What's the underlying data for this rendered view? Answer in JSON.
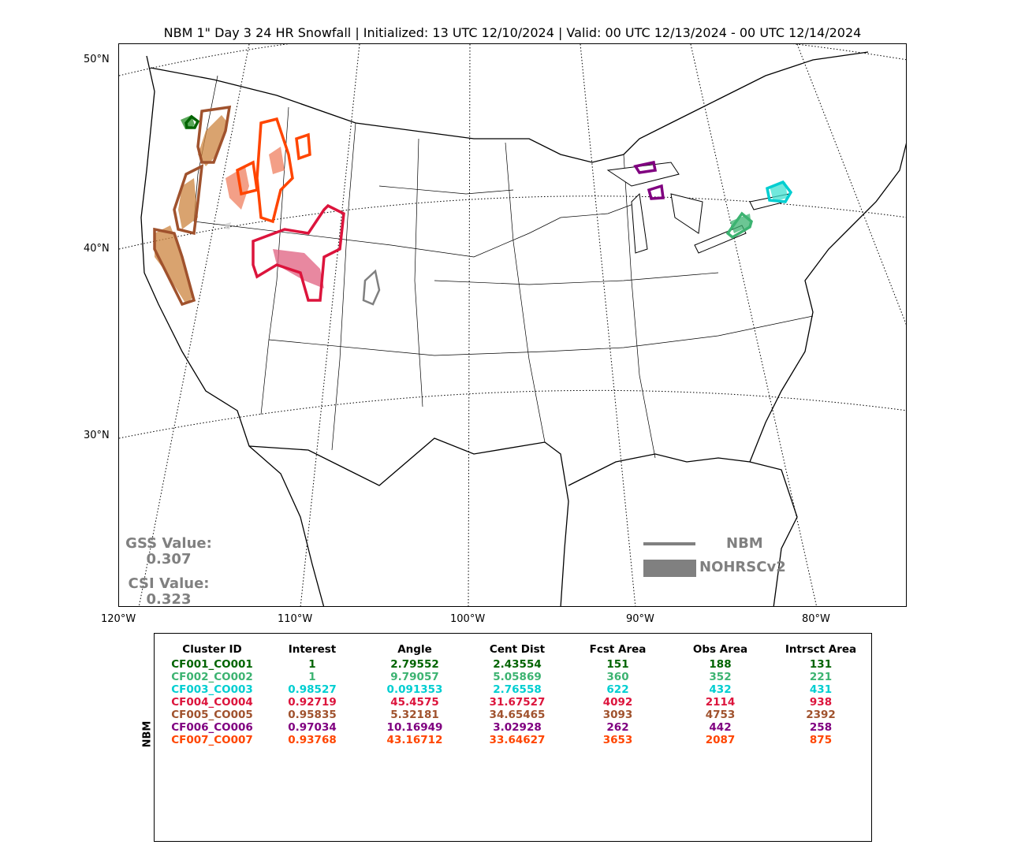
{
  "title": "NBM 1\" Day 3 24 HR Snowfall | Initialized: 13 UTC 12/10/2024 | Valid: 00 UTC 12/13/2024 - 00 UTC 12/14/2024",
  "axes": {
    "lat_labels": [
      "50°N",
      "40°N",
      "30°N"
    ],
    "lon_labels": [
      "120°W",
      "110°W",
      "100°W",
      "90°W",
      "80°W"
    ]
  },
  "stats": {
    "gss_label": "GSS Value:",
    "gss_value": "0.307",
    "csi_label": "CSI Value:",
    "csi_value": "0.323"
  },
  "legend": {
    "forecast_label": "NBM",
    "observed_label": "NOHRSCv2",
    "color": "#808080"
  },
  "table": {
    "row_label": "NBM",
    "headers": [
      "Cluster ID",
      "Interest",
      "Angle",
      "Cent Dist",
      "Fcst Area",
      "Obs Area",
      "Intrsct Area"
    ],
    "rows": [
      {
        "id": "CF001_CO001",
        "interest": "1",
        "angle": "2.79552",
        "cent_dist": "2.43554",
        "fcst_area": "151",
        "obs_area": "188",
        "intrsct_area": "131",
        "color": "#006400"
      },
      {
        "id": "CF002_CO002",
        "interest": "1",
        "angle": "9.79057",
        "cent_dist": "5.05869",
        "fcst_area": "360",
        "obs_area": "352",
        "intrsct_area": "221",
        "color": "#3cb371"
      },
      {
        "id": "CF003_CO003",
        "interest": "0.98527",
        "angle": "0.091353",
        "cent_dist": "2.76558",
        "fcst_area": "622",
        "obs_area": "432",
        "intrsct_area": "431",
        "color": "#00ced1"
      },
      {
        "id": "CF004_CO004",
        "interest": "0.92719",
        "angle": "45.4575",
        "cent_dist": "31.67527",
        "fcst_area": "4092",
        "obs_area": "2114",
        "intrsct_area": "938",
        "color": "#dc143c"
      },
      {
        "id": "CF005_CO005",
        "interest": "0.95835",
        "angle": "5.32181",
        "cent_dist": "34.65465",
        "fcst_area": "3093",
        "obs_area": "4753",
        "intrsct_area": "2392",
        "color": "#a0522d"
      },
      {
        "id": "CF006_CO006",
        "interest": "0.97034",
        "angle": "10.16949",
        "cent_dist": "3.02928",
        "fcst_area": "262",
        "obs_area": "442",
        "intrsct_area": "258",
        "color": "#800080"
      },
      {
        "id": "CF007_CO007",
        "interest": "0.93768",
        "angle": "43.16712",
        "cent_dist": "33.64627",
        "fcst_area": "3653",
        "obs_area": "2087",
        "intrsct_area": "875",
        "color": "#ff4500"
      }
    ]
  }
}
